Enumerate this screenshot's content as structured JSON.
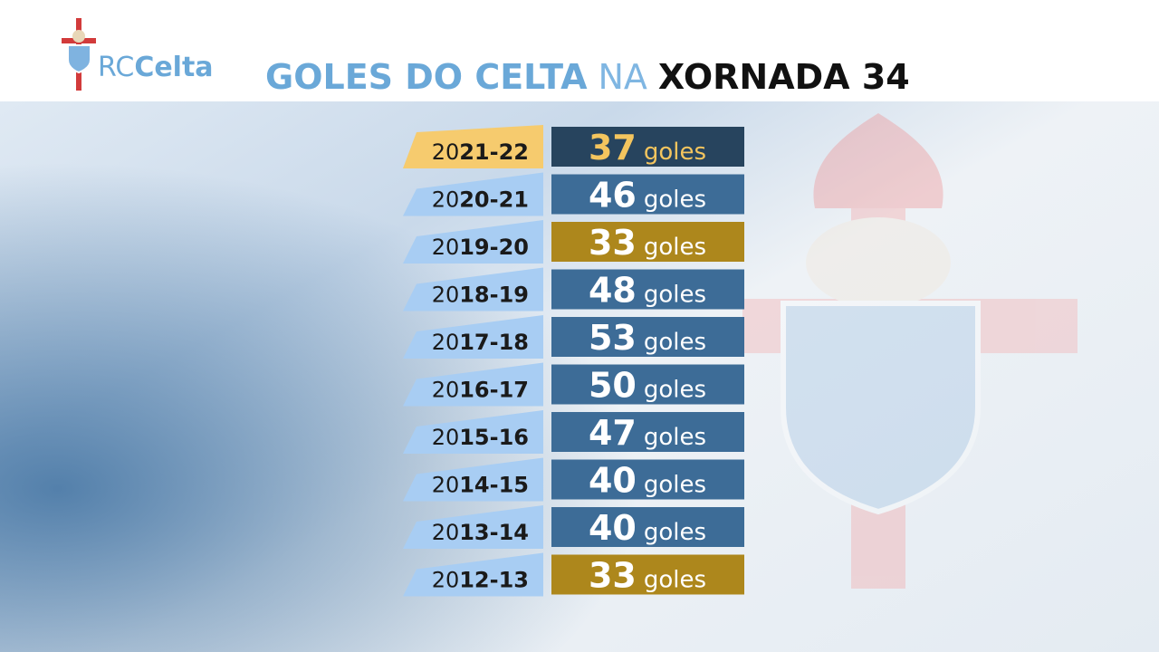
{
  "header": {
    "logo_prefix": "RC",
    "logo_name": "Celta",
    "title_main": "GOLES DO CELTA",
    "title_connector": "NA",
    "title_round": "XORNADA 34"
  },
  "unit_label": "goles",
  "rows": [
    {
      "season": "2021-22",
      "goals": 37,
      "box_color": "#27445e",
      "number_color": "#f4c55e",
      "tag_color": "#f6cb6e"
    },
    {
      "season": "2020-21",
      "goals": 46,
      "box_color": "#3d6c97",
      "number_color": "#ffffff",
      "tag_color": "#a8cdf3"
    },
    {
      "season": "2019-20",
      "goals": 33,
      "box_color": "#ad871c",
      "number_color": "#ffffff",
      "tag_color": "#a8cdf3"
    },
    {
      "season": "2018-19",
      "goals": 48,
      "box_color": "#3d6c97",
      "number_color": "#ffffff",
      "tag_color": "#a8cdf3"
    },
    {
      "season": "2017-18",
      "goals": 53,
      "box_color": "#3d6c97",
      "number_color": "#ffffff",
      "tag_color": "#a8cdf3"
    },
    {
      "season": "2016-17",
      "goals": 50,
      "box_color": "#3d6c97",
      "number_color": "#ffffff",
      "tag_color": "#a8cdf3"
    },
    {
      "season": "2015-16",
      "goals": 47,
      "box_color": "#3d6c97",
      "number_color": "#ffffff",
      "tag_color": "#a8cdf3"
    },
    {
      "season": "2014-15",
      "goals": 40,
      "box_color": "#3d6c97",
      "number_color": "#ffffff",
      "tag_color": "#a8cdf3"
    },
    {
      "season": "2013-14",
      "goals": 40,
      "box_color": "#3d6c97",
      "number_color": "#ffffff",
      "tag_color": "#a8cdf3"
    },
    {
      "season": "2012-13",
      "goals": 33,
      "box_color": "#ad871c",
      "number_color": "#ffffff",
      "tag_color": "#a8cdf3"
    }
  ]
}
